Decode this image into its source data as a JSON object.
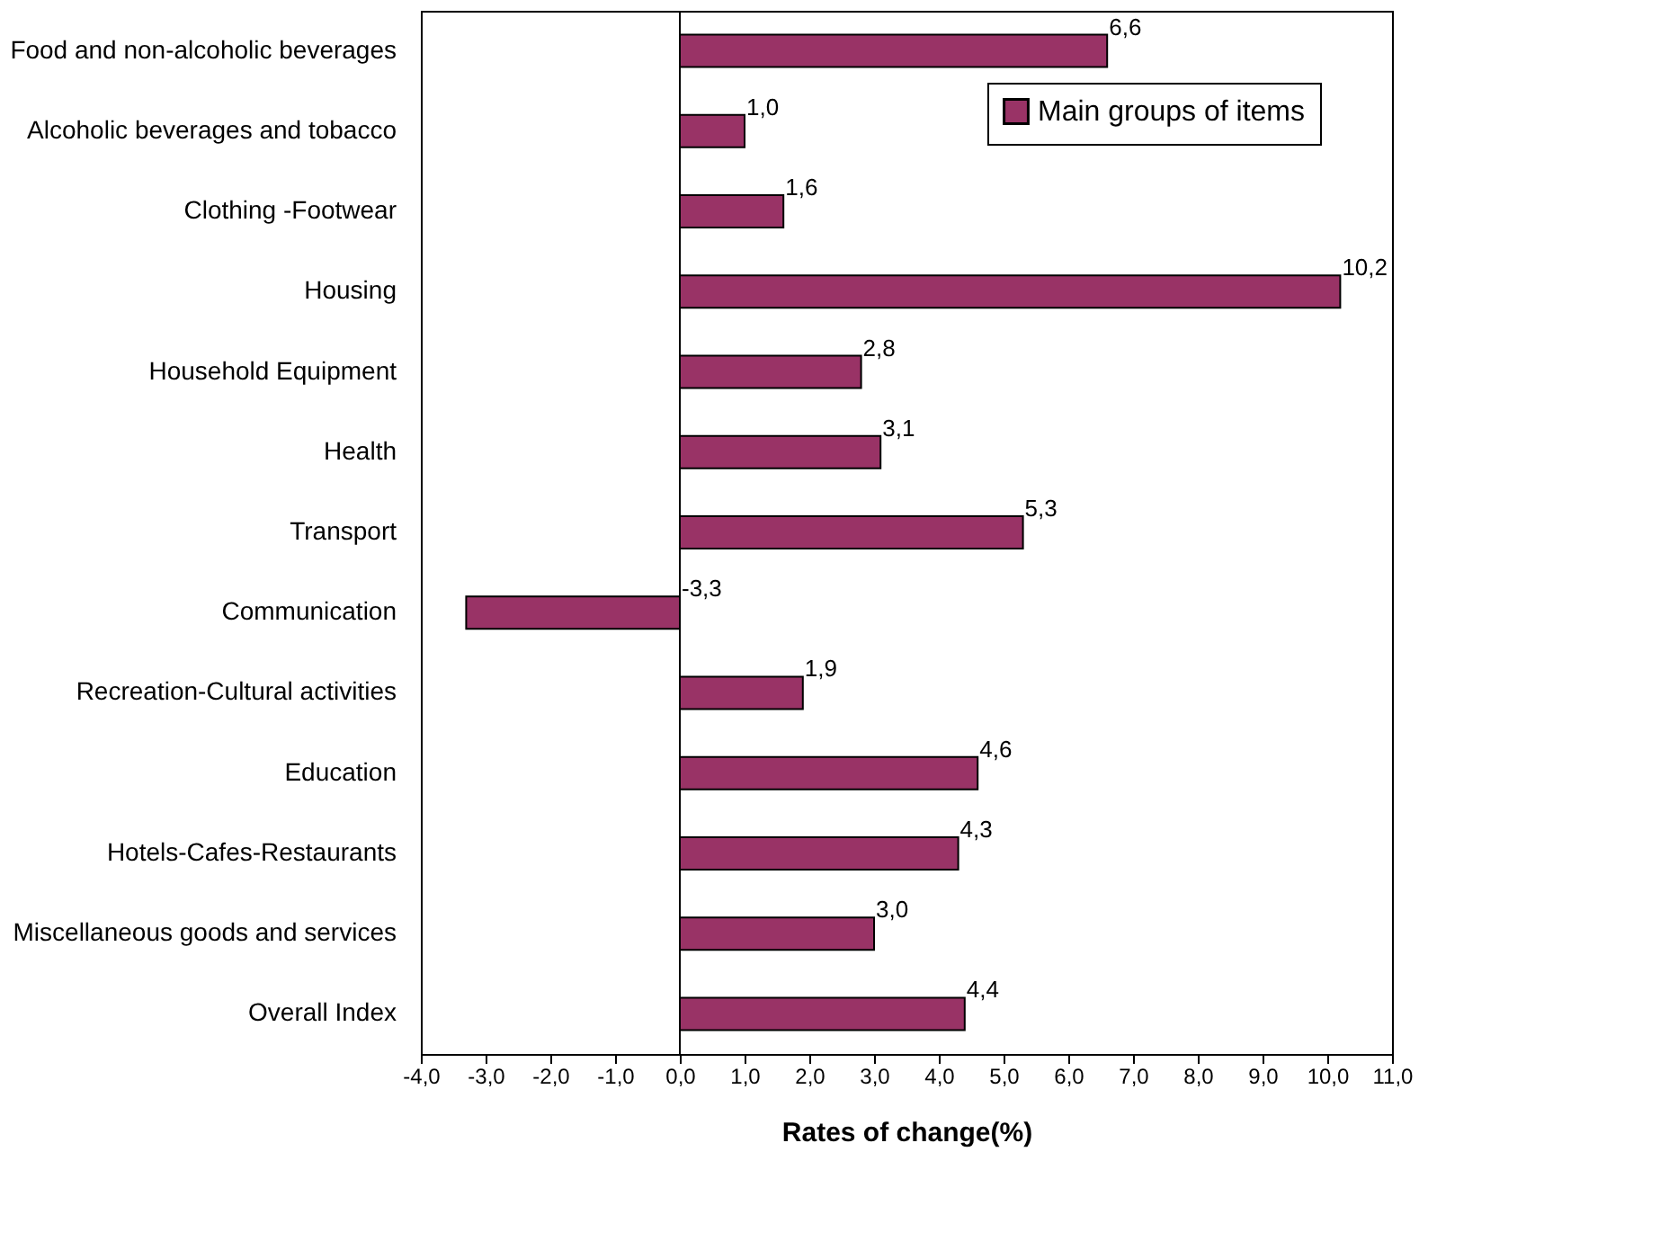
{
  "chart_data": {
    "type": "bar",
    "orientation": "horizontal",
    "xlabel": "Rates of change(%)",
    "categories": [
      "Food and non-alcoholic beverages",
      "Alcoholic beverages and tobacco",
      "Clothing -Footwear",
      "Housing",
      "Household Equipment",
      "Health",
      "Transport",
      "Communication",
      "Recreation-Cultural activities",
      "Education",
      "Hotels-Cafes-Restaurants",
      "Miscellaneous goods and services",
      "Overall Index"
    ],
    "series": [
      {
        "name": "Main groups of items",
        "color": "#993366",
        "values": [
          6.6,
          1.0,
          1.6,
          10.2,
          2.8,
          3.1,
          5.3,
          -3.3,
          1.9,
          4.6,
          4.3,
          3.0,
          4.4
        ],
        "value_labels": [
          "6,6",
          "1,0",
          "1,6",
          "10,2",
          "2,8",
          "3,1",
          "5,3",
          "-3,3",
          "1,9",
          "4,6",
          "4,3",
          "3,0",
          "4,4"
        ]
      }
    ],
    "xlim": [
      -4.0,
      11.0
    ],
    "xticks": [
      {
        "value": -4,
        "label": "-4,0"
      },
      {
        "value": -3,
        "label": "-3,0"
      },
      {
        "value": -2,
        "label": "-2,0"
      },
      {
        "value": -1,
        "label": "-1,0"
      },
      {
        "value": 0,
        "label": "0,0"
      },
      {
        "value": 1,
        "label": "1,0"
      },
      {
        "value": 2,
        "label": "2,0"
      },
      {
        "value": 3,
        "label": "3,0"
      },
      {
        "value": 4,
        "label": "4,0"
      },
      {
        "value": 5,
        "label": "5,0"
      },
      {
        "value": 6,
        "label": "6,0"
      },
      {
        "value": 7,
        "label": "7,0"
      },
      {
        "value": 8,
        "label": "8,0"
      },
      {
        "value": 9,
        "label": "9,0"
      },
      {
        "value": 10,
        "label": "10,0"
      },
      {
        "value": 11,
        "label": "11,0"
      }
    ],
    "ref_lines": [
      {
        "axis": "x",
        "value": 0,
        "color": "#000000"
      }
    ],
    "grid": false,
    "legend": "top right"
  }
}
